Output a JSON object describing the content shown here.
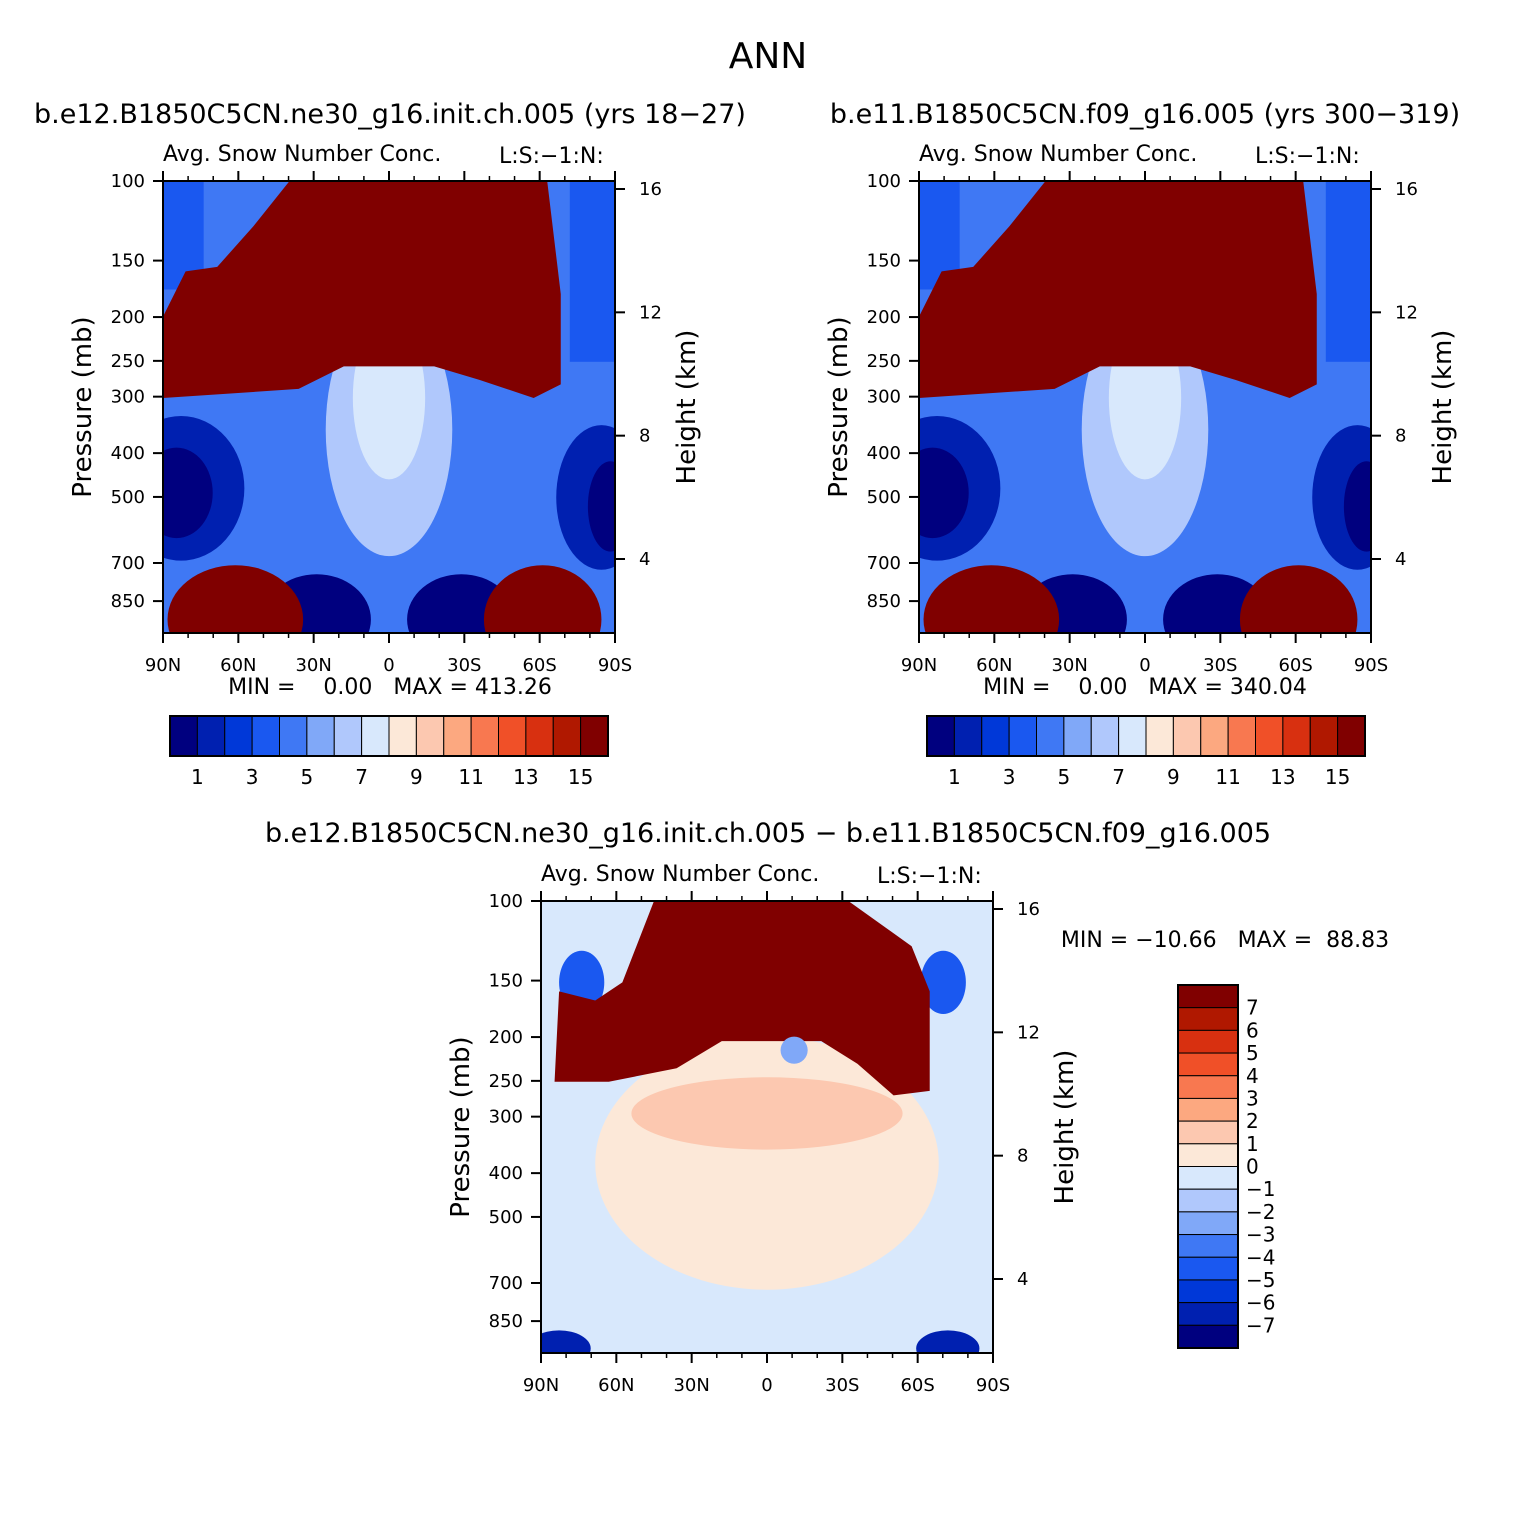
{
  "page_title": "ANN",
  "colors": {
    "top_scale": [
      "#00007f",
      "#0020b0",
      "#0038d8",
      "#1a58f0",
      "#3f78f4",
      "#80a8f8",
      "#b0c8fc",
      "#d8e8fc",
      "#fce8d8",
      "#fcc8b0",
      "#fca880",
      "#f87850",
      "#f05028",
      "#d83010",
      "#b01800",
      "#800000"
    ],
    "diff_scale": [
      "#00007f",
      "#0020b0",
      "#0038d8",
      "#1a58f0",
      "#3f78f4",
      "#80a8f8",
      "#b0c8fc",
      "#d8e8fc",
      "#fce8d8",
      "#fcc8b0",
      "#fca880",
      "#f87850",
      "#f05028",
      "#d83010",
      "#b01800",
      "#800000"
    ]
  },
  "chart_data": [
    {
      "type": "heatmap",
      "title": "b.e12.B1850C5CN.ne30_g16.init.ch.005 (yrs 18-27)",
      "subtitle": "Avg. Snow Number Conc.",
      "units_label": "L:S:-1:N:",
      "ylabel": "Pressure (mb)",
      "ylabel_right": "Height (km)",
      "xtick_labels": [
        "90N",
        "60N",
        "30N",
        "0",
        "30S",
        "60S",
        "90S"
      ],
      "ytick_labels": [
        "100",
        "150",
        "200",
        "250",
        "300",
        "400",
        "500",
        "700",
        "850"
      ],
      "ytick_values": [
        100,
        150,
        200,
        250,
        300,
        400,
        500,
        700,
        850
      ],
      "ylim": [
        100,
        1000
      ],
      "yscale": "log",
      "right_ticks": [
        "16",
        "12",
        "8",
        "4"
      ],
      "min_max_text": "MIN =    0.00   MAX = 413.26",
      "min": 0.0,
      "max": 413.26,
      "colorbar": {
        "orientation": "horizontal",
        "labels": [
          "1",
          "3",
          "5",
          "7",
          "9",
          "11",
          "13",
          "15"
        ],
        "levels": [
          1,
          2,
          3,
          4,
          5,
          6,
          7,
          8,
          9,
          10,
          11,
          12,
          13,
          14,
          15
        ]
      }
    },
    {
      "type": "heatmap",
      "title": "b.e11.B1850C5CN.f09_g16.005 (yrs 300-319)",
      "subtitle": "Avg. Snow Number Conc.",
      "units_label": "L:S:-1:N:",
      "ylabel": "Pressure (mb)",
      "ylabel_right": "Height (km)",
      "xtick_labels": [
        "90N",
        "60N",
        "30N",
        "0",
        "30S",
        "60S",
        "90S"
      ],
      "ytick_labels": [
        "100",
        "150",
        "200",
        "250",
        "300",
        "400",
        "500",
        "700",
        "850"
      ],
      "ytick_values": [
        100,
        150,
        200,
        250,
        300,
        400,
        500,
        700,
        850
      ],
      "ylim": [
        100,
        1000
      ],
      "yscale": "log",
      "right_ticks": [
        "16",
        "12",
        "8",
        "4"
      ],
      "min_max_text": "MIN =    0.00   MAX = 340.04",
      "min": 0.0,
      "max": 340.04,
      "colorbar": {
        "orientation": "horizontal",
        "labels": [
          "1",
          "3",
          "5",
          "7",
          "9",
          "11",
          "13",
          "15"
        ],
        "levels": [
          1,
          2,
          3,
          4,
          5,
          6,
          7,
          8,
          9,
          10,
          11,
          12,
          13,
          14,
          15
        ]
      }
    },
    {
      "type": "heatmap",
      "title": "b.e12.B1850C5CN.ne30_g16.init.ch.005 - b.e11.B1850C5CN.f09_g16.005",
      "subtitle": "Avg. Snow Number Conc.",
      "units_label": "L:S:-1:N:",
      "ylabel": "Pressure (mb)",
      "ylabel_right": "Height (km)",
      "xtick_labels": [
        "90N",
        "60N",
        "30N",
        "0",
        "30S",
        "60S",
        "90S"
      ],
      "ytick_labels": [
        "100",
        "150",
        "200",
        "250",
        "300",
        "400",
        "500",
        "700",
        "850"
      ],
      "ytick_values": [
        100,
        150,
        200,
        250,
        300,
        400,
        500,
        700,
        850
      ],
      "ylim": [
        100,
        1000
      ],
      "yscale": "log",
      "right_ticks": [
        "16",
        "12",
        "8",
        "4"
      ],
      "min_max_text": "MIN = -10.66   MAX =  88.83",
      "min": -10.66,
      "max": 88.83,
      "colorbar": {
        "orientation": "vertical",
        "labels": [
          "7",
          "6",
          "5",
          "4",
          "3",
          "2",
          "1",
          "0",
          "-1",
          "-2",
          "-3",
          "-4",
          "-5",
          "-6",
          "-7"
        ],
        "levels": [
          7,
          6,
          5,
          4,
          3,
          2,
          1,
          0,
          -1,
          -2,
          -3,
          -4,
          -5,
          -6,
          -7
        ]
      }
    }
  ]
}
